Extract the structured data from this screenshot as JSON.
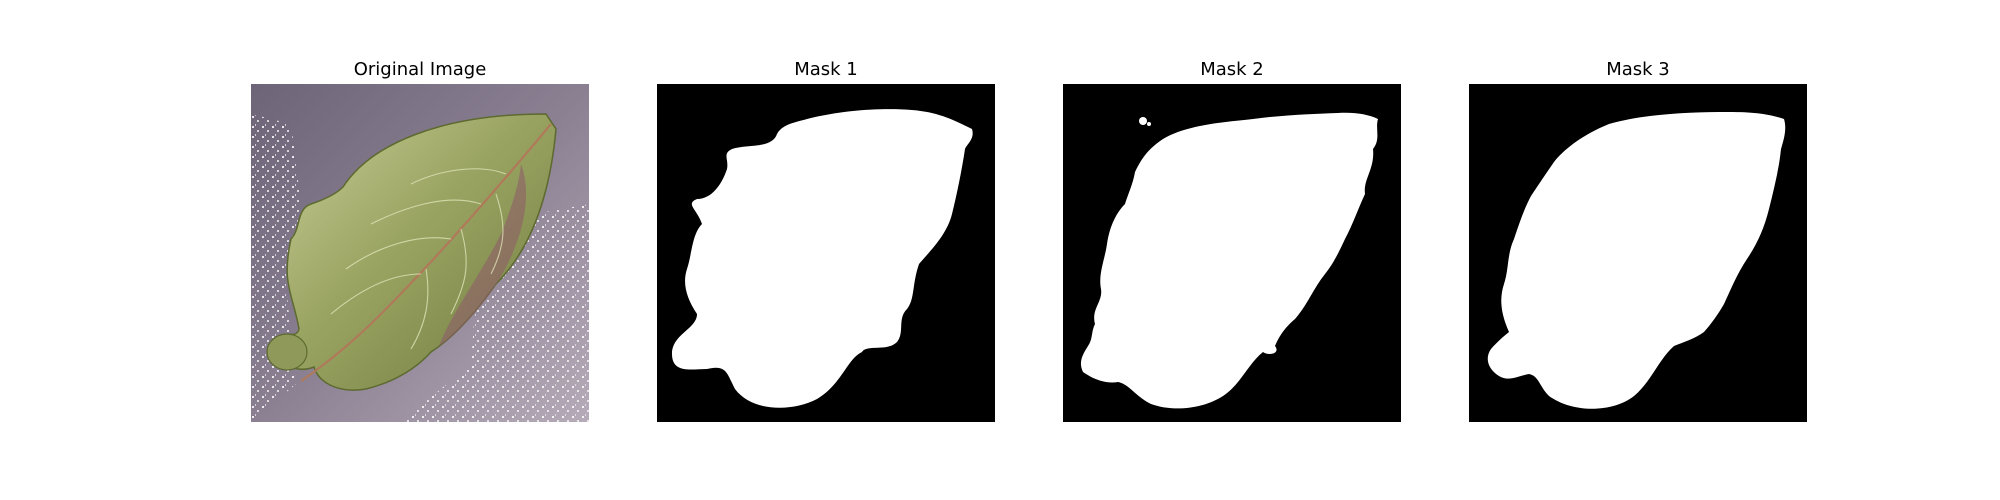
{
  "figure": {
    "panels": [
      {
        "title": "Original Image",
        "kind": "photo",
        "subject": "leaf"
      },
      {
        "title": "Mask 1",
        "kind": "binary-mask"
      },
      {
        "title": "Mask 2",
        "kind": "binary-mask"
      },
      {
        "title": "Mask 3",
        "kind": "binary-mask"
      }
    ]
  },
  "colors": {
    "mask_background": "#000000",
    "mask_foreground": "#ffffff",
    "leaf_body": "#8f9a5a",
    "leaf_highlight": "#c9cf98",
    "leaf_vein": "#b07a5a",
    "photo_background": "#8a8092"
  }
}
